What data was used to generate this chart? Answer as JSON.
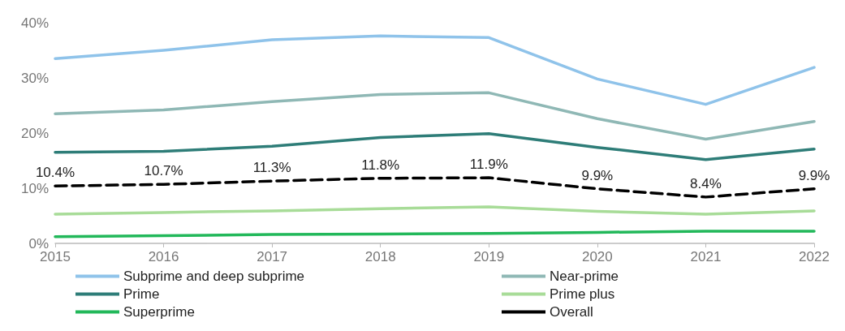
{
  "chart_data": {
    "type": "line",
    "categories": [
      "2015",
      "2016",
      "2017",
      "2018",
      "2019",
      "2020",
      "2021",
      "2022"
    ],
    "ylim": [
      0,
      40
    ],
    "yticks": [
      {
        "value": 0,
        "label": "0%"
      },
      {
        "value": 10,
        "label": "10%"
      },
      {
        "value": 20,
        "label": "20%"
      },
      {
        "value": 30,
        "label": "30%"
      },
      {
        "value": 40,
        "label": "40%"
      }
    ],
    "grid": false,
    "legend": "bottom",
    "marker": "none",
    "series": [
      {
        "name": "Subprime and deep subprime",
        "color": "#8fc3ea",
        "values": [
          33.5,
          35.0,
          36.9,
          37.6,
          37.3,
          29.8,
          25.2,
          31.9
        ]
      },
      {
        "name": "Near-prime",
        "color": "#8fb8b5",
        "values": [
          23.5,
          24.2,
          25.7,
          27.0,
          27.3,
          22.6,
          18.9,
          22.1
        ]
      },
      {
        "name": "Prime",
        "color": "#2e7d78",
        "values": [
          16.5,
          16.7,
          17.6,
          19.2,
          19.9,
          17.4,
          15.2,
          17.1
        ]
      },
      {
        "name": "Prime plus",
        "color": "#a8dc98",
        "values": [
          5.3,
          5.6,
          5.9,
          6.3,
          6.6,
          5.8,
          5.3,
          5.9
        ]
      },
      {
        "name": "Superprime",
        "color": "#22b85a",
        "values": [
          1.2,
          1.4,
          1.6,
          1.7,
          1.8,
          2.0,
          2.2,
          2.2
        ]
      },
      {
        "name": "Overall",
        "color": "#000000",
        "line_style": "dashed",
        "values": [
          10.4,
          10.7,
          11.3,
          11.8,
          11.9,
          9.9,
          8.4,
          9.9
        ],
        "value_labels": [
          "10.4%",
          "10.7%",
          "11.3%",
          "11.8%",
          "11.9%",
          "9.9%",
          "8.4%",
          "9.9%"
        ]
      }
    ]
  }
}
